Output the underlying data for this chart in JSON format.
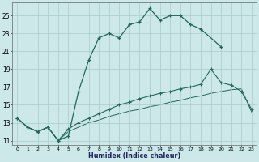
{
  "xlabel": "Humidex (Indice chaleur)",
  "bg_color": "#cce8e8",
  "grid_color": "#aacccc",
  "line_color": "#206858",
  "xlim": [
    -0.5,
    23.5
  ],
  "ylim": [
    10.5,
    26.5
  ],
  "xticks": [
    0,
    1,
    2,
    3,
    4,
    5,
    6,
    7,
    8,
    9,
    10,
    11,
    12,
    13,
    14,
    15,
    16,
    17,
    18,
    19,
    20,
    21,
    22,
    23
  ],
  "yticks": [
    11,
    13,
    15,
    17,
    19,
    21,
    23,
    25
  ],
  "line1_x": [
    0,
    1,
    2,
    3,
    4,
    5,
    6,
    7,
    8,
    9,
    10,
    11,
    12,
    13,
    14,
    15,
    16,
    17,
    18,
    20
  ],
  "line1_y": [
    13.5,
    12.5,
    12.0,
    12.5,
    11.0,
    11.5,
    16.5,
    20.0,
    22.5,
    23.0,
    22.5,
    24.0,
    24.3,
    25.8,
    24.5,
    25.0,
    25.0,
    24.0,
    23.5,
    21.5
  ],
  "line2_x": [
    0,
    1,
    2,
    3,
    4,
    5,
    6,
    7,
    8,
    9,
    10,
    11,
    12,
    13,
    14,
    15,
    16,
    17,
    18,
    19,
    20,
    21,
    22,
    23
  ],
  "line2_y": [
    13.5,
    12.5,
    12.0,
    12.5,
    11.0,
    12.3,
    13.0,
    13.5,
    14.0,
    14.5,
    15.0,
    15.3,
    15.7,
    16.0,
    16.3,
    16.5,
    16.8,
    17.0,
    17.3,
    19.0,
    17.5,
    17.2,
    16.5,
    14.5
  ],
  "line3_x": [
    0,
    1,
    2,
    3,
    4,
    5,
    6,
    7,
    8,
    9,
    10,
    11,
    12,
    13,
    14,
    15,
    16,
    17,
    18,
    19,
    20,
    21,
    22,
    23
  ],
  "line3_y": [
    13.5,
    12.5,
    12.0,
    12.5,
    11.0,
    12.0,
    12.5,
    13.0,
    13.3,
    13.7,
    14.0,
    14.3,
    14.5,
    14.8,
    15.0,
    15.3,
    15.5,
    15.8,
    16.0,
    16.3,
    16.5,
    16.7,
    16.8,
    14.2
  ]
}
